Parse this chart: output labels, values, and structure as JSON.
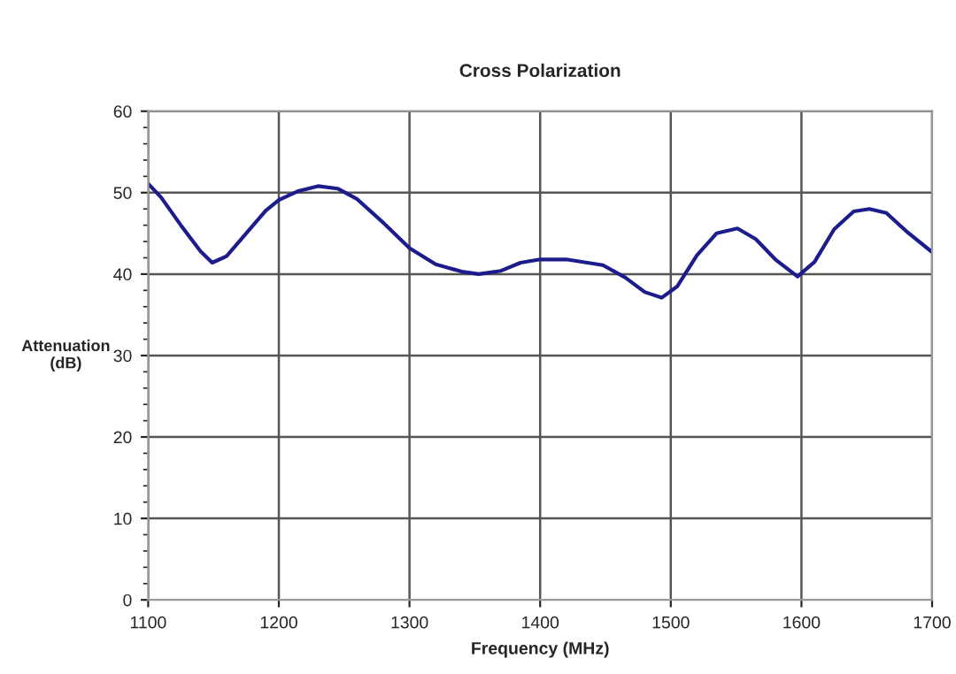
{
  "chart_data": {
    "type": "line",
    "title": "Cross Polarization",
    "xlabel": "Frequency (MHz)",
    "ylabel": "Attenuation\n(dB)",
    "series": [
      {
        "color": "#1c1c8c",
        "x": [
          1100,
          1110,
          1125,
          1140,
          1149,
          1160,
          1175,
          1190,
          1200,
          1215,
          1230,
          1245,
          1260,
          1280,
          1300,
          1320,
          1340,
          1353,
          1370,
          1385,
          1400,
          1420,
          1448,
          1465,
          1480,
          1493,
          1505,
          1520,
          1535,
          1551,
          1565,
          1580,
          1597,
          1610,
          1625,
          1640,
          1652,
          1665,
          1680,
          1700
        ],
        "values": [
          51.1,
          49.4,
          46.0,
          42.8,
          41.4,
          42.2,
          45.0,
          47.8,
          49.1,
          50.2,
          50.8,
          50.5,
          49.2,
          46.3,
          43.2,
          41.2,
          40.3,
          40.0,
          40.4,
          41.4,
          41.8,
          41.8,
          41.1,
          39.6,
          37.8,
          37.1,
          38.5,
          42.3,
          45.0,
          45.6,
          44.3,
          41.8,
          39.7,
          41.5,
          45.5,
          47.7,
          48.0,
          47.5,
          45.3,
          42.7
        ]
      }
    ],
    "xlim": [
      1100,
      1700
    ],
    "xticks": [
      1100,
      1200,
      1300,
      1400,
      1500,
      1600,
      1700
    ],
    "ylim": [
      0,
      60
    ],
    "yticks": [
      0,
      10,
      20,
      30,
      40,
      50,
      60
    ],
    "grid": true,
    "marker": "none",
    "line_style": "solid"
  }
}
